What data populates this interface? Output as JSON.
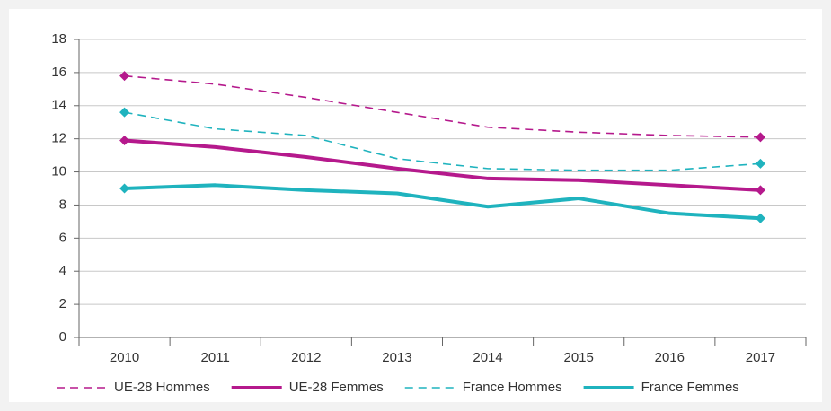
{
  "chart_data": {
    "type": "line",
    "categories": [
      "2010",
      "2011",
      "2012",
      "2013",
      "2014",
      "2015",
      "2016",
      "2017"
    ],
    "series": [
      {
        "name": "UE-28 Hommes",
        "color": "#b5198c",
        "line_style": "dashed",
        "values": [
          15.8,
          15.3,
          14.5,
          13.6,
          12.7,
          12.4,
          12.2,
          12.1
        ]
      },
      {
        "name": "UE-28 Femmes",
        "color": "#b5198c",
        "line_style": "solid",
        "values": [
          11.9,
          11.5,
          10.9,
          10.2,
          9.6,
          9.5,
          9.2,
          8.9
        ]
      },
      {
        "name": "France Hommes",
        "color": "#1fb3be",
        "line_style": "dashed",
        "values": [
          13.6,
          12.6,
          12.2,
          10.8,
          10.2,
          10.1,
          10.1,
          10.5
        ]
      },
      {
        "name": "France Femmes",
        "color": "#1fb3be",
        "line_style": "solid",
        "values": [
          9.0,
          9.2,
          8.9,
          8.7,
          7.9,
          8.4,
          7.5,
          7.2
        ]
      }
    ],
    "ylim": [
      0,
      18
    ],
    "yticks": [
      0,
      2,
      4,
      6,
      8,
      10,
      12,
      14,
      16,
      18
    ],
    "grid": true,
    "legend": "bottom"
  }
}
